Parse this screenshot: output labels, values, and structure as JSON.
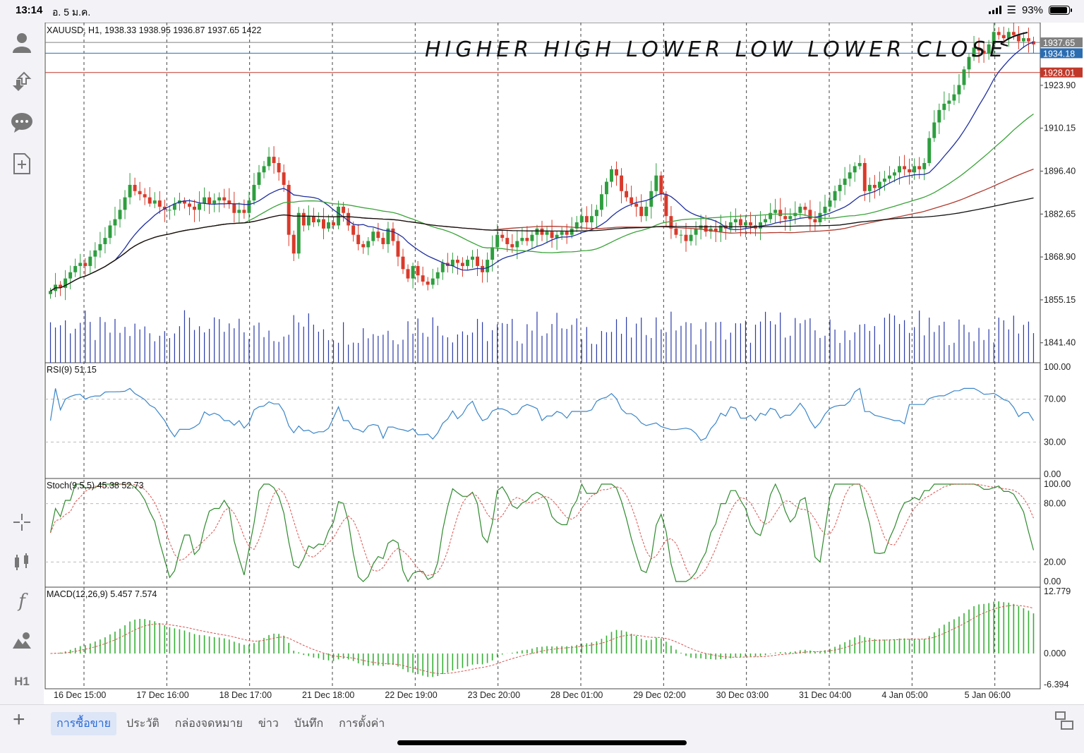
{
  "status": {
    "time": "13:14",
    "date": "อ. 5 ม.ค.",
    "battery": "93%",
    "battery_level": 0.93
  },
  "sidebar_icons": [
    "account-icon",
    "trade-icon",
    "chat-icon",
    "new-document-icon",
    "crosshair-icon",
    "candles-icon",
    "indicator-f-icon",
    "objects-icon",
    "timeframe-h1-icon"
  ],
  "sidebar_timeframe": "H1",
  "tabs": [
    {
      "label": "การซื้อขาย",
      "active": true
    },
    {
      "label": "ประวัติ",
      "active": false
    },
    {
      "label": "กล่องจดหมาย",
      "active": false
    },
    {
      "label": "ข่าว",
      "active": false
    },
    {
      "label": "บันทึก",
      "active": false
    },
    {
      "label": "การตั้งค่า",
      "active": false
    }
  ],
  "chart_data": {
    "type": "candlestick",
    "title": "XAUUSD, H1, 1938.33 1938.95 1936.87 1937.65 1422",
    "annotation": "HIGHER HIGH LOWER LOW LOWER CLOSE",
    "price_axis": {
      "ylim": [
        1835,
        1944
      ],
      "ticks": [
        1923.9,
        1910.15,
        1896.4,
        1882.65,
        1868.9,
        1855.15,
        1841.4
      ]
    },
    "price_markers": [
      {
        "label": "1937.65",
        "value": 1937.65,
        "color": "#808080"
      },
      {
        "label": "1934.18",
        "value": 1934.18,
        "color": "#2b6cb0"
      },
      {
        "label": "1928.01",
        "value": 1928.01,
        "color": "#c0392b"
      }
    ],
    "x_labels": [
      "16 Dec 15:00",
      "17 Dec 16:00",
      "18 Dec 17:00",
      "21 Dec 18:00",
      "22 Dec 19:00",
      "23 Dec 20:00",
      "28 Dec 01:00",
      "29 Dec 02:00",
      "30 Dec 03:00",
      "31 Dec 04:00",
      "4 Jan 05:00",
      "5 Jan 06:00"
    ],
    "closes": [
      1858,
      1860,
      1859,
      1862,
      1864,
      1866,
      1867,
      1866,
      1869,
      1871,
      1873,
      1875,
      1879,
      1881,
      1884,
      1888,
      1892,
      1890,
      1889,
      1888,
      1886,
      1887,
      1885,
      1884,
      1884,
      1886,
      1887,
      1886,
      1885,
      1884,
      1886,
      1888,
      1886,
      1887,
      1888,
      1887,
      1886,
      1883,
      1884,
      1883,
      1887,
      1892,
      1896,
      1898,
      1901,
      1899,
      1896,
      1892,
      1876,
      1870,
      1883,
      1879,
      1882,
      1880,
      1881,
      1878,
      1880,
      1879,
      1885,
      1883,
      1879,
      1876,
      1873,
      1872,
      1874,
      1877,
      1875,
      1873,
      1878,
      1874,
      1869,
      1865,
      1862,
      1866,
      1863,
      1861,
      1860,
      1862,
      1864,
      1867,
      1866,
      1868,
      1867,
      1866,
      1868,
      1869,
      1866,
      1864,
      1868,
      1872,
      1876,
      1875,
      1873,
      1872,
      1874,
      1875,
      1874,
      1876,
      1878,
      1876,
      1877,
      1875,
      1876,
      1877,
      1876,
      1878,
      1880,
      1882,
      1880,
      1882,
      1884,
      1889,
      1893,
      1897,
      1895,
      1890,
      1888,
      1886,
      1885,
      1882,
      1885,
      1890,
      1895,
      1889,
      1882,
      1878,
      1876,
      1876,
      1874,
      1876,
      1878,
      1879,
      1877,
      1878,
      1877,
      1879,
      1878,
      1880,
      1881,
      1879,
      1880,
      1879,
      1878,
      1880,
      1881,
      1883,
      1884,
      1882,
      1881,
      1882,
      1883,
      1885,
      1884,
      1881,
      1880,
      1883,
      1885,
      1887,
      1890,
      1892,
      1894,
      1896,
      1898,
      1899,
      1890,
      1892,
      1891,
      1893,
      1894,
      1895,
      1896,
      1898,
      1897,
      1896,
      1898,
      1897,
      1899,
      1907,
      1912,
      1916,
      1918,
      1919,
      1921,
      1924,
      1929,
      1933,
      1936,
      1935,
      1934,
      1937,
      1941,
      1940,
      1939,
      1941,
      1940,
      1938,
      1939,
      1938,
      1937
    ],
    "rsi": {
      "label": "RSI(9) 51.15",
      "ylim": [
        0,
        100
      ],
      "ticks": [
        "100.00",
        "70.00",
        "30.00",
        "0.00"
      ]
    },
    "stoch": {
      "label": "Stoch(9,5,5) 45.38 52.73",
      "ylim": [
        0,
        100
      ],
      "ticks": [
        "100.00",
        "80.00",
        "20.00",
        "0.00"
      ]
    },
    "macd": {
      "label": "MACD(12,26,9) 5.457 7.574",
      "ylim": [
        -6.394,
        12.779
      ],
      "ticks": [
        "12.779",
        "0.000",
        "-6.394"
      ]
    },
    "colors": {
      "bull": "#2e9e3f",
      "bear": "#d93a2b",
      "ma_fast": "#1f2f9e",
      "ma_mid": "#3aa33a",
      "ma_slow": "#b03a2e",
      "ma_long": "#111111",
      "volume": "#2a3aa8",
      "rsi": "#3b86c9",
      "stoch_main": "#2f8a2f",
      "stoch_signal": "#d9534f",
      "macd_hist": "#35b035",
      "macd_signal": "#d9534f"
    }
  }
}
